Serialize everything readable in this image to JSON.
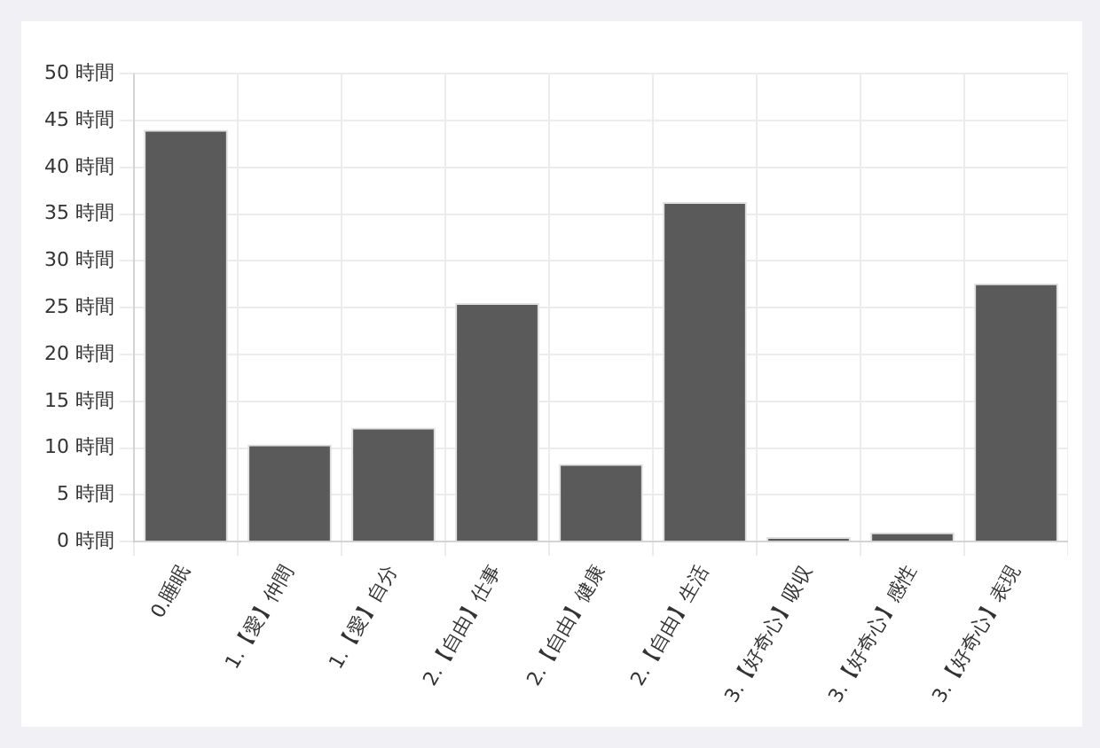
{
  "chart_data": {
    "type": "bar",
    "categories": [
      "0.睡眠",
      "1.【愛】仲間",
      "1.【愛】自分",
      "2.【自由】仕事",
      "2.【自由】健康",
      "2.【自由】生活",
      "3.【好奇心】吸収",
      "3.【好奇心】感性",
      "3.【好奇心】表現"
    ],
    "values": [
      44,
      10.4,
      12.2,
      25.5,
      8.3,
      36.3,
      0.5,
      1,
      27.6
    ],
    "color": "#5a5a5a",
    "ylim": [
      0,
      50
    ],
    "yticks": [
      {
        "value": 0,
        "label": "0 時間"
      },
      {
        "value": 5,
        "label": "5 時間"
      },
      {
        "value": 10,
        "label": "10 時間"
      },
      {
        "value": 15,
        "label": "15 時間"
      },
      {
        "value": 20,
        "label": "20 時間"
      },
      {
        "value": 25,
        "label": "25 時間"
      },
      {
        "value": 30,
        "label": "30 時間"
      },
      {
        "value": 35,
        "label": "35 時間"
      },
      {
        "value": 40,
        "label": "40 時間"
      },
      {
        "value": 45,
        "label": "45 時間"
      },
      {
        "value": 50,
        "label": "50 時間"
      }
    ],
    "grid": true
  }
}
